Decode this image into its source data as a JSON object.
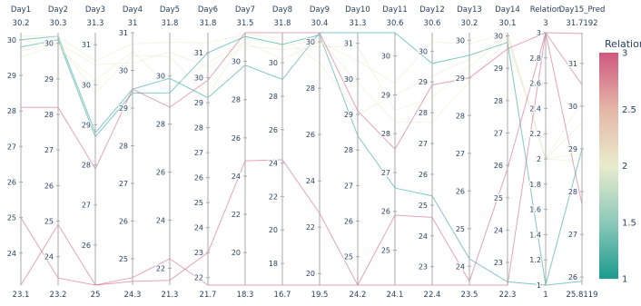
{
  "chart_data": {
    "type": "parallel_coordinates",
    "color_dimension": "Relation",
    "colorscale": [
      "#1b9b8f",
      "#8cc9b9",
      "#e9ebcd",
      "#e4b6a8",
      "#d0587e"
    ],
    "line_opacity": 0.55,
    "dimensions": [
      {
        "label": "Day1",
        "range": [
          23.1,
          30.2
        ],
        "range_labels": [
          "23.1",
          "30.2"
        ],
        "ticks": [
          24,
          25,
          26,
          27,
          28,
          29,
          30
        ]
      },
      {
        "label": "Day2",
        "range": [
          23.2,
          30.3
        ],
        "range_labels": [
          "23.2",
          "30.3"
        ],
        "ticks": [
          24,
          25,
          26,
          27,
          28,
          29,
          30
        ]
      },
      {
        "label": "Day3",
        "range": [
          25,
          31.3
        ],
        "range_labels": [
          "25",
          "31.3"
        ],
        "ticks": [
          26,
          27,
          28,
          29,
          30,
          31
        ]
      },
      {
        "label": "Day4",
        "range": [
          24.3,
          31
        ],
        "range_labels": [
          "24.3",
          "31"
        ],
        "ticks": [
          25,
          26,
          27,
          28,
          29,
          30,
          31
        ]
      },
      {
        "label": "Day5",
        "range": [
          21.3,
          31.8
        ],
        "range_labels": [
          "21.3",
          "31.8"
        ],
        "ticks": [
          22,
          24,
          26,
          28,
          30
        ]
      },
      {
        "label": "Day6",
        "range": [
          21.7,
          31.8
        ],
        "range_labels": [
          "21.7",
          "31.8"
        ],
        "ticks": [
          22,
          23,
          24,
          25,
          26,
          27,
          28,
          29,
          30,
          31
        ]
      },
      {
        "label": "Day7",
        "range": [
          18.3,
          31.5
        ],
        "range_labels": [
          "18.3",
          "31.5"
        ],
        "ticks": [
          20,
          22,
          24,
          26,
          28,
          30
        ]
      },
      {
        "label": "Day8",
        "range": [
          16.7,
          31.8
        ],
        "range_labels": [
          "16.7",
          "31.8"
        ],
        "ticks": [
          18,
          20,
          22,
          24,
          26,
          28,
          30
        ]
      },
      {
        "label": "Day9",
        "range": [
          19.5,
          30.4
        ],
        "range_labels": [
          "19.5",
          "30.4"
        ],
        "ticks": [
          20,
          22,
          24,
          26,
          28,
          30
        ]
      },
      {
        "label": "Day10",
        "range": [
          24.2,
          31.3
        ],
        "range_labels": [
          "24.2",
          "31.3"
        ],
        "ticks": [
          25,
          26,
          27,
          28,
          29,
          30,
          31
        ]
      },
      {
        "label": "Day11",
        "range": [
          24.1,
          30.6
        ],
        "range_labels": [
          "24.1",
          "30.6"
        ],
        "ticks": [
          25,
          26,
          27,
          28,
          29,
          30
        ]
      },
      {
        "label": "Day12",
        "range": [
          22.4,
          30.6
        ],
        "range_labels": [
          "22.4",
          "30.6"
        ],
        "ticks": [
          23,
          24,
          25,
          26,
          27,
          28,
          29,
          30
        ]
      },
      {
        "label": "Day13",
        "range": [
          23.5,
          30.2
        ],
        "range_labels": [
          "23.5",
          "30.2"
        ],
        "ticks": [
          24,
          25,
          26,
          27,
          28,
          29,
          30
        ]
      },
      {
        "label": "Day14",
        "range": [
          22.3,
          30.1
        ],
        "range_labels": [
          "22.3",
          "30.1"
        ],
        "ticks": [
          23,
          24,
          25,
          26,
          27,
          28,
          29,
          30
        ]
      },
      {
        "label": "Relation",
        "range": [
          1,
          3
        ],
        "range_labels": [
          "1",
          "3"
        ],
        "ticks": [
          1,
          1.2,
          1.4,
          1.6,
          1.8,
          2,
          2.2,
          2.4,
          2.6,
          2.8,
          3
        ]
      },
      {
        "label": "Day15_Pred",
        "range": [
          25.8119,
          31.7192
        ],
        "range_labels": [
          "25.8119",
          "31.7192"
        ],
        "ticks": [
          26,
          27,
          28,
          29,
          30,
          31
        ]
      }
    ],
    "records": [
      [
        30.0,
        30.2,
        28.8,
        29.5,
        29.9,
        29.2,
        29.8,
        29.0,
        30.4,
        31.3,
        30.6,
        29.6,
        29.6,
        29.8,
        1,
        29.0
      ],
      [
        29.8,
        30.1,
        28.7,
        29.4,
        29.3,
        31.0,
        31.3,
        31.1,
        30.3,
        28.4,
        26.6,
        25.3,
        24.2,
        22.4,
        1,
        25.9
      ],
      [
        29.7,
        30.0,
        30.5,
        30.2,
        31.0,
        30.4,
        30.8,
        30.8,
        29.8,
        30.9,
        28.6,
        28.5,
        29.3,
        30.0,
        2,
        28.9
      ],
      [
        29.5,
        30.0,
        29.8,
        30.4,
        30.8,
        29.3,
        31.2,
        31.0,
        30.1,
        29.9,
        28.3,
        27.7,
        28.9,
        29.9,
        2,
        28.7
      ],
      [
        30.1,
        30.2,
        30.6,
        30.7,
        31.4,
        31.4,
        31.4,
        31.5,
        29.1,
        29.0,
        29.0,
        29.2,
        29.5,
        30.0,
        2,
        30.1
      ],
      [
        30.0,
        29.9,
        30.1,
        30.5,
        29.5,
        30.6,
        31.0,
        30.2,
        30.0,
        30.5,
        29.3,
        30.3,
        29.9,
        30.1,
        2,
        29.6
      ],
      [
        28.1,
        28.2,
        27.9,
        29.5,
        28.7,
        29.9,
        31.5,
        31.8,
        30.4,
        29.1,
        27.6,
        28.9,
        29.0,
        29.6,
        3,
        30.5
      ],
      [
        25.0,
        23.4,
        25.0,
        24.4,
        21.5,
        23.0,
        24.8,
        24.2,
        22.6,
        24.2,
        25.9,
        24.6,
        23.6,
        25.9,
        3,
        27.7
      ],
      [
        23.1,
        24.9,
        25.0,
        24.5,
        22.4,
        21.7,
        18.3,
        16.7,
        19.5,
        24.2,
        24.1,
        22.4,
        23.5,
        22.3,
        3,
        31.7
      ]
    ],
    "colorbar": {
      "title": "Relation",
      "ticks": [
        1,
        1.5,
        2,
        2.5,
        3
      ],
      "tick_labels": [
        "1",
        "1.5",
        "2",
        "2.5",
        "3"
      ],
      "min": 1,
      "max": 3
    }
  }
}
